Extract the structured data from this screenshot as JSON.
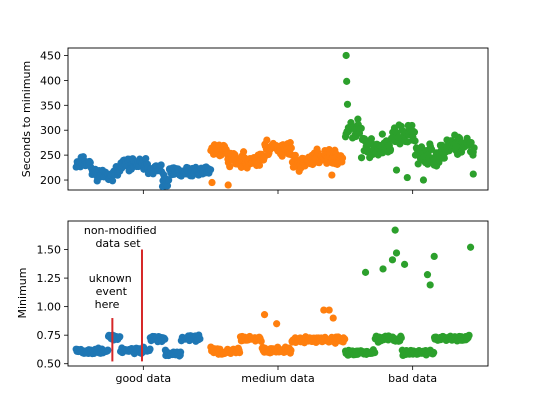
{
  "chart_data": [
    {
      "type": "scatter",
      "panel": "top",
      "ylabel": "Seconds to minimum",
      "xlabel": "",
      "ylim": [
        180,
        465
      ],
      "yticks": [
        "200",
        "250",
        "300",
        "350",
        "400",
        "450"
      ],
      "xlim": [
        0,
        1500
      ],
      "series": [
        {
          "color": "#1f77b4",
          "x_range": [
            0,
            500
          ],
          "base": 220,
          "spread": 16,
          "seed": 11,
          "segments": [
            [
              0,
              55,
              235,
              0
            ],
            [
              55,
              165,
              217,
              -6
            ],
            [
              165,
              260,
              232,
              0
            ],
            [
              260,
              320,
              222,
              0
            ],
            [
              320,
              345,
              195,
              0
            ],
            [
              345,
              430,
              215,
              0
            ],
            [
              430,
              500,
              218,
              0
            ]
          ]
        },
        {
          "color": "#ff7f0e",
          "x_range": [
            500,
            1000
          ],
          "base": 250,
          "spread": 22,
          "seed": 23,
          "segments": [
            [
              500,
              560,
              260,
              0
            ],
            [
              560,
              700,
              240,
              0
            ],
            [
              700,
              800,
              265,
              0
            ],
            [
              800,
              880,
              235,
              0
            ],
            [
              880,
              990,
              245,
              0
            ]
          ],
          "extra": [
            [
              505,
              195
            ],
            [
              565,
              190
            ],
            [
              950,
              210
            ]
          ]
        },
        {
          "color": "#2ca02c",
          "x_range": [
            1000,
            1500
          ],
          "base": 285,
          "spread": 28,
          "seed": 37,
          "segments": [
            [
              1000,
              1060,
              300,
              0
            ],
            [
              1060,
              1170,
              265,
              0
            ],
            [
              1170,
              1260,
              290,
              0
            ],
            [
              1260,
              1370,
              250,
              0
            ],
            [
              1370,
              1480,
              265,
              0
            ]
          ],
          "extra": [
            [
              1003,
              450
            ],
            [
              1005,
              398
            ],
            [
              1008,
              352
            ],
            [
              1190,
              220
            ],
            [
              1230,
              205
            ],
            [
              1250,
              280
            ],
            [
              1290,
              200
            ],
            [
              1330,
              230
            ],
            [
              1475,
              212
            ]
          ]
        }
      ]
    },
    {
      "type": "scatter",
      "panel": "bottom",
      "ylabel": "Minimum",
      "xlabel": "",
      "ylim": [
        0.48,
        1.75
      ],
      "yticks": [
        "0.50",
        "0.75",
        "1.00",
        "1.25",
        "1.50"
      ],
      "xlim": [
        0,
        1500
      ],
      "categories": [
        "good data",
        "medium data",
        "bad data"
      ],
      "category_centers": [
        250,
        750,
        1250
      ],
      "series": [
        {
          "color": "#1f77b4",
          "x_range": [
            0,
            500
          ],
          "seed": 51,
          "segments": [
            [
              0,
              120,
              0.61,
              0
            ],
            [
              120,
              165,
              0.73,
              0
            ],
            [
              165,
              275,
              0.62,
              0
            ],
            [
              275,
              330,
              0.72,
              0
            ],
            [
              330,
              390,
              0.59,
              0
            ],
            [
              390,
              460,
              0.72,
              0
            ]
          ]
        },
        {
          "color": "#ff7f0e",
          "x_range": [
            500,
            1000
          ],
          "seed": 63,
          "segments": [
            [
              500,
              610,
              0.61,
              0
            ],
            [
              610,
              690,
              0.72,
              0
            ],
            [
              690,
              800,
              0.62,
              0
            ],
            [
              800,
              880,
              0.71,
              0
            ],
            [
              880,
              1000,
              0.71,
              0
            ]
          ],
          "extra": [
            [
              700,
              0.93
            ],
            [
              745,
              0.85
            ],
            [
              920,
              0.97
            ],
            [
              940,
              0.97
            ],
            [
              955,
              0.9
            ]
          ]
        },
        {
          "color": "#2ca02c",
          "x_range": [
            1000,
            1500
          ],
          "seed": 79,
          "segments": [
            [
              1000,
              1110,
              0.6,
              0
            ],
            [
              1110,
              1210,
              0.72,
              0
            ],
            [
              1210,
              1330,
              0.6,
              0
            ],
            [
              1330,
              1460,
              0.72,
              0
            ]
          ],
          "extra": [
            [
              1075,
              1.3
            ],
            [
              1140,
              1.33
            ],
            [
              1175,
              1.41
            ],
            [
              1185,
              1.67
            ],
            [
              1190,
              1.47
            ],
            [
              1220,
              1.37
            ],
            [
              1305,
              1.28
            ],
            [
              1315,
              1.19
            ],
            [
              1330,
              1.44
            ],
            [
              1465,
              1.52
            ]
          ]
        }
      ],
      "markers": [
        {
          "x": 135,
          "y0": 0.52,
          "y1": 0.9,
          "color": "#d62728"
        },
        {
          "x": 245,
          "y0": 0.52,
          "y1": 1.5,
          "color": "#d62728"
        }
      ],
      "annotations": [
        {
          "text_lines": [
            "non-modified",
            "data set"
          ]
        },
        {
          "text_lines": [
            "uknown",
            "event",
            "here"
          ]
        }
      ]
    }
  ]
}
